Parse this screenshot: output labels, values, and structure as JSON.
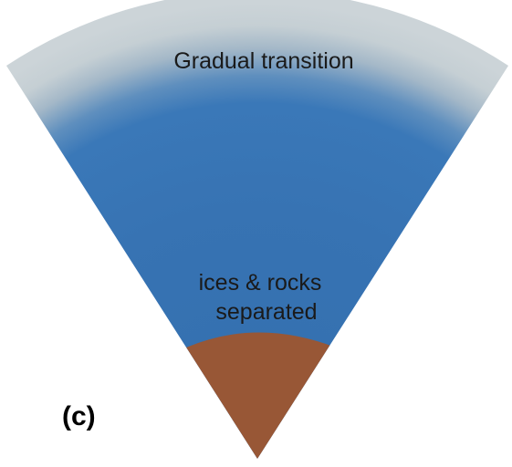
{
  "diagram": {
    "panel_label": "(c)",
    "outer_label": "Gradual transition",
    "inner_label_line1": "ices & rocks",
    "inner_label_line2": "separated"
  },
  "colors": {
    "mantle_blue": "#3a78b8",
    "mantle_blue_deep": "#336fae",
    "transition_gray": "#c9d2d6",
    "core_brown": "#985736",
    "background": "#ffffff"
  }
}
